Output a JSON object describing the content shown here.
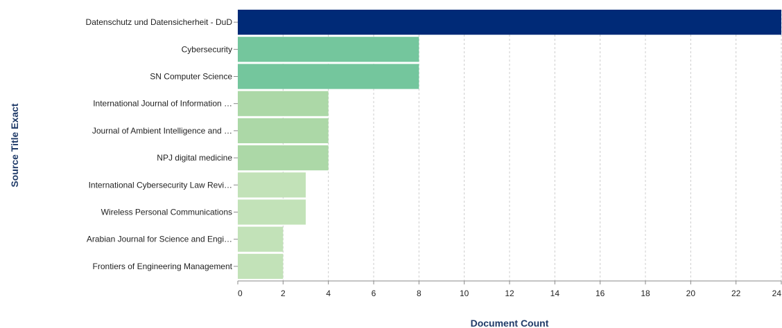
{
  "chart_data": {
    "type": "bar",
    "orientation": "horizontal",
    "categories": [
      "Datenschutz und Datensicherheit - DuD",
      "Cybersecurity",
      "SN Computer Science",
      "International Journal of Information …",
      "Journal of Ambient Intelligence and …",
      "NPJ digital medicine",
      "International Cybersecurity Law Revi…",
      "Wireless Personal Communications",
      "Arabian Journal for Science and Engi…",
      "Frontiers of Engineering Management"
    ],
    "values": [
      24,
      8,
      8,
      4,
      4,
      4,
      3,
      3,
      2,
      2
    ],
    "colors": [
      "#002a77",
      "#74c69d",
      "#74c69d",
      "#acd8a7",
      "#acd8a7",
      "#acd8a7",
      "#c2e2b8",
      "#c2e2b8",
      "#c2e2b8",
      "#c2e2b8"
    ],
    "xlabel": "Document Count",
    "ylabel": "Source Title Exact",
    "xlim": [
      0,
      24
    ],
    "xticks": [
      "0",
      "2",
      "4",
      "6",
      "8",
      "10",
      "12",
      "14",
      "16",
      "18",
      "20",
      "22",
      "24"
    ],
    "grid": "vertical",
    "legend": "none"
  }
}
